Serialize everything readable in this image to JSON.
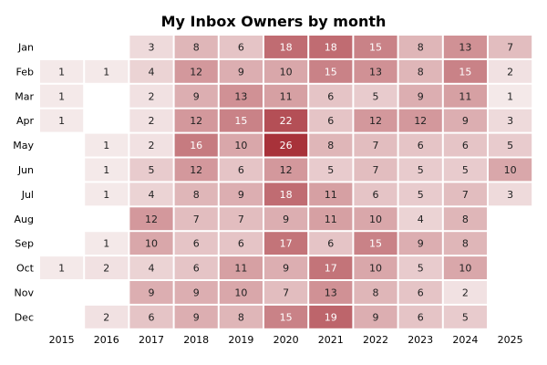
{
  "chart_data": {
    "type": "heatmap",
    "title": "My Inbox Owners by month",
    "xlabel": "",
    "ylabel": "",
    "x_categories": [
      "2015",
      "2016",
      "2017",
      "2018",
      "2019",
      "2020",
      "2021",
      "2022",
      "2023",
      "2024",
      "2025"
    ],
    "y_categories": [
      "Jan",
      "Feb",
      "Mar",
      "Apr",
      "May",
      "Jun",
      "Jul",
      "Aug",
      "Sep",
      "Oct",
      "Nov",
      "Dec"
    ],
    "values": [
      [
        null,
        null,
        3,
        8,
        6,
        18,
        18,
        15,
        8,
        13,
        7
      ],
      [
        1,
        1,
        4,
        12,
        9,
        10,
        15,
        13,
        8,
        15,
        2
      ],
      [
        1,
        null,
        2,
        9,
        13,
        11,
        6,
        5,
        9,
        11,
        1
      ],
      [
        1,
        null,
        2,
        12,
        15,
        22,
        6,
        12,
        12,
        9,
        3
      ],
      [
        null,
        1,
        2,
        16,
        10,
        26,
        8,
        7,
        6,
        6,
        5
      ],
      [
        null,
        1,
        5,
        12,
        6,
        12,
        5,
        7,
        5,
        5,
        10
      ],
      [
        null,
        1,
        4,
        8,
        9,
        18,
        11,
        6,
        5,
        7,
        3
      ],
      [
        null,
        null,
        12,
        7,
        7,
        9,
        11,
        10,
        4,
        8,
        null
      ],
      [
        null,
        1,
        10,
        6,
        6,
        17,
        6,
        15,
        9,
        8,
        null
      ],
      [
        1,
        2,
        4,
        6,
        11,
        9,
        17,
        10,
        5,
        10,
        null
      ],
      [
        null,
        null,
        9,
        9,
        10,
        7,
        13,
        8,
        6,
        2,
        null
      ],
      [
        null,
        2,
        6,
        9,
        8,
        15,
        19,
        9,
        6,
        5,
        null
      ]
    ],
    "color_low": "#f7f0f0",
    "color_high": "#a8323a",
    "value_range": [
      0,
      26
    ],
    "grid": false,
    "legend": "none"
  }
}
